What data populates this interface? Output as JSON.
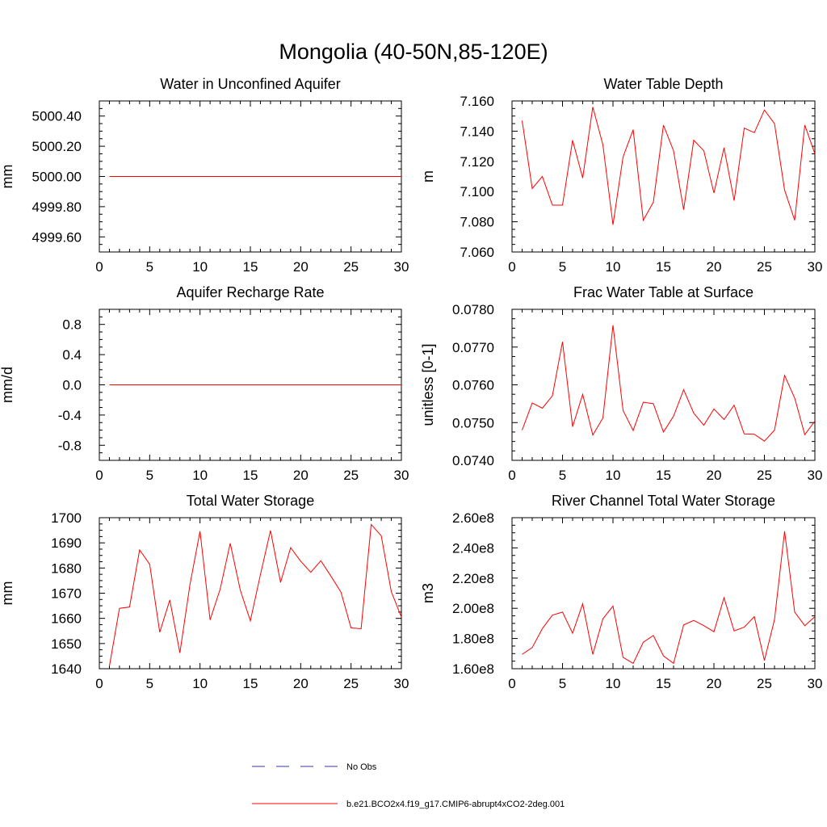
{
  "figure_title": "Mongolia (40-50N,85-120E)",
  "colors": {
    "model": "#ff0000",
    "obs": "#3333aa",
    "axis": "#000000"
  },
  "legend": [
    {
      "label": "No Obs",
      "style": "dashed",
      "color": "#3333aa"
    },
    {
      "label": "b.e21.BCO2x4.f19_g17.CMIP6-abrupt4xCO2-2deg.001",
      "style": "solid",
      "color": "#ff0000"
    }
  ],
  "chart_data": [
    {
      "type": "line",
      "title": "Water in Unconfined Aquifer",
      "ylabel": "mm",
      "xlim": [
        0,
        30
      ],
      "ylim": [
        4999.5,
        5000.5
      ],
      "xticks": [
        "0",
        "5",
        "10",
        "15",
        "20",
        "25",
        "30"
      ],
      "yticks": [
        "4999.60",
        "4999.80",
        "5000.00",
        "5000.20",
        "5000.40"
      ],
      "series": [
        {
          "x": [
            1,
            2,
            3,
            4,
            5,
            6,
            7,
            8,
            9,
            10,
            11,
            12,
            13,
            14,
            15,
            16,
            17,
            18,
            19,
            20,
            21,
            22,
            23,
            24,
            25,
            26,
            27,
            28,
            29,
            30
          ],
          "values": [
            5000,
            5000,
            5000,
            5000,
            5000,
            5000,
            5000,
            5000,
            5000,
            5000,
            5000,
            5000,
            5000,
            5000,
            5000,
            5000,
            5000,
            5000,
            5000,
            5000,
            5000,
            5000,
            5000,
            5000,
            5000,
            5000,
            5000,
            5000,
            5000,
            5000
          ]
        }
      ]
    },
    {
      "type": "line",
      "title": "Water Table Depth",
      "ylabel": "m",
      "xlim": [
        0,
        30
      ],
      "ylim": [
        7.06,
        7.16
      ],
      "xticks": [
        "0",
        "5",
        "10",
        "15",
        "20",
        "25",
        "30"
      ],
      "yticks": [
        "7.060",
        "7.080",
        "7.100",
        "7.120",
        "7.140",
        "7.160"
      ],
      "series": [
        {
          "x": [
            1,
            2,
            3,
            4,
            5,
            6,
            7,
            8,
            9,
            10,
            11,
            12,
            13,
            14,
            15,
            16,
            17,
            18,
            19,
            20,
            21,
            22,
            23,
            24,
            25,
            26,
            27,
            28,
            29,
            30
          ],
          "values": [
            7.147,
            7.102,
            7.11,
            7.091,
            7.091,
            7.134,
            7.109,
            7.156,
            7.131,
            7.078,
            7.123,
            7.141,
            7.081,
            7.093,
            7.144,
            7.127,
            7.088,
            7.134,
            7.127,
            7.099,
            7.129,
            7.094,
            7.142,
            7.139,
            7.154,
            7.145,
            7.101,
            7.081,
            7.144,
            7.125
          ]
        }
      ]
    },
    {
      "type": "line",
      "title": "Aquifer Recharge Rate",
      "ylabel": "mm/d",
      "xlim": [
        0,
        30
      ],
      "ylim": [
        -1.0,
        1.0
      ],
      "xticks": [
        "0",
        "5",
        "10",
        "15",
        "20",
        "25",
        "30"
      ],
      "yticks": [
        "-0.8",
        "-0.4",
        "0.0",
        "0.4",
        "0.8"
      ],
      "series": [
        {
          "x": [
            1,
            2,
            3,
            4,
            5,
            6,
            7,
            8,
            9,
            10,
            11,
            12,
            13,
            14,
            15,
            16,
            17,
            18,
            19,
            20,
            21,
            22,
            23,
            24,
            25,
            26,
            27,
            28,
            29,
            30
          ],
          "values": [
            0,
            0,
            0,
            0,
            0,
            0,
            0,
            0,
            0,
            0,
            0,
            0,
            0,
            0,
            0,
            0,
            0,
            0,
            0,
            0,
            0,
            0,
            0,
            0,
            0,
            0,
            0,
            0,
            0,
            0
          ]
        }
      ]
    },
    {
      "type": "line",
      "title": "Frac Water Table at Surface",
      "ylabel": "unitless [0-1]",
      "xlim": [
        0,
        30
      ],
      "ylim": [
        0.074,
        0.078
      ],
      "xticks": [
        "0",
        "5",
        "10",
        "15",
        "20",
        "25",
        "30"
      ],
      "yticks": [
        "0.0740",
        "0.0750",
        "0.0760",
        "0.0770",
        "0.0780"
      ],
      "series": [
        {
          "x": [
            1,
            2,
            3,
            4,
            5,
            6,
            7,
            8,
            9,
            10,
            11,
            12,
            13,
            14,
            15,
            16,
            17,
            18,
            19,
            20,
            21,
            22,
            23,
            24,
            25,
            26,
            27,
            28,
            29,
            30
          ],
          "values": [
            0.0748,
            0.07552,
            0.07538,
            0.07571,
            0.07714,
            0.07489,
            0.07575,
            0.07467,
            0.07512,
            0.07758,
            0.07532,
            0.07479,
            0.07554,
            0.0755,
            0.07475,
            0.07517,
            0.07587,
            0.07525,
            0.07493,
            0.07536,
            0.07508,
            0.07546,
            0.0747,
            0.07469,
            0.07451,
            0.0748,
            0.07625,
            0.07565,
            0.07468,
            0.07504
          ]
        }
      ]
    },
    {
      "type": "line",
      "title": "Total Water Storage",
      "ylabel": "mm",
      "xlim": [
        0,
        30
      ],
      "ylim": [
        1640,
        1700
      ],
      "xticks": [
        "0",
        "5",
        "10",
        "15",
        "20",
        "25",
        "30"
      ],
      "yticks": [
        "1640",
        "1650",
        "1660",
        "1670",
        "1680",
        "1690",
        "1700"
      ],
      "series": [
        {
          "x": [
            1,
            2,
            3,
            4,
            5,
            6,
            7,
            8,
            9,
            10,
            11,
            12,
            13,
            14,
            15,
            16,
            17,
            18,
            19,
            20,
            21,
            22,
            23,
            24,
            25,
            26,
            27,
            28,
            29,
            30
          ],
          "values": [
            1641,
            1664,
            1664.5,
            1687.2,
            1681.5,
            1654.5,
            1667.3,
            1646.3,
            1673.4,
            1694.6,
            1659.4,
            1671.6,
            1689.8,
            1671.2,
            1659,
            1677.4,
            1694.9,
            1674.3,
            1688.1,
            1682.7,
            1678.3,
            1682.9,
            1676.8,
            1670.4,
            1656.2,
            1655.9,
            1697.3,
            1692.8,
            1670.6,
            1660.5
          ]
        }
      ]
    },
    {
      "type": "line",
      "title": "River Channel Total Water Storage",
      "ylabel": "m3",
      "xlim": [
        0,
        30
      ],
      "ylim": [
        160000000.0,
        260000000.0
      ],
      "xticks": [
        "0",
        "5",
        "10",
        "15",
        "20",
        "25",
        "30"
      ],
      "yticks": [
        "1.60e8",
        "1.80e8",
        "2.00e8",
        "2.20e8",
        "2.40e8",
        "2.60e8"
      ],
      "series": [
        {
          "x": [
            1,
            2,
            3,
            4,
            5,
            6,
            7,
            8,
            9,
            10,
            11,
            12,
            13,
            14,
            15,
            16,
            17,
            18,
            19,
            20,
            21,
            22,
            23,
            24,
            25,
            26,
            27,
            28,
            29,
            30
          ],
          "values": [
            169500000,
            174000000,
            186500000,
            195500000,
            197500000,
            183500000,
            203000000,
            169500000,
            193000000,
            201500000,
            167500000,
            163500000,
            177500000,
            182000000,
            168500000,
            163500000,
            189000000,
            192000000,
            188500000,
            184500000,
            207000000,
            185000000,
            187500000,
            194500000,
            165500000,
            192500000,
            251000000,
            197500000,
            188500000,
            194500000
          ]
        }
      ]
    }
  ]
}
